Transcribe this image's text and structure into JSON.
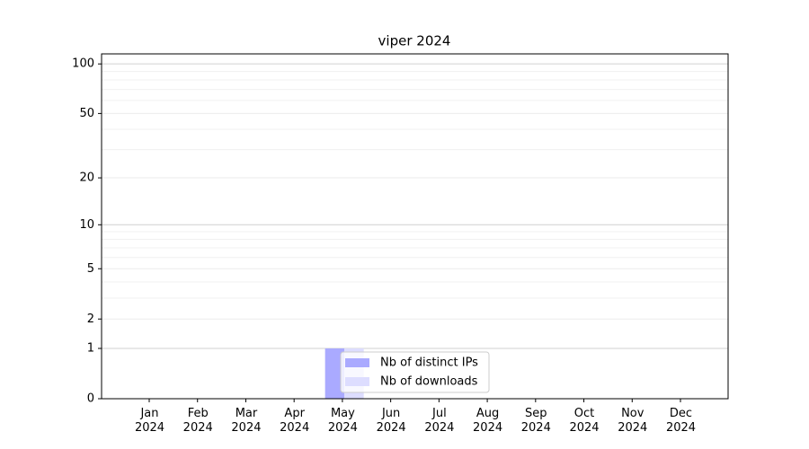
{
  "chart_data": {
    "type": "bar",
    "title": "viper 2024",
    "categories": [
      "Jan\n2024",
      "Feb\n2024",
      "Mar\n2024",
      "Apr\n2024",
      "May\n2024",
      "Jun\n2024",
      "Jul\n2024",
      "Aug\n2024",
      "Sep\n2024",
      "Oct\n2024",
      "Nov\n2024",
      "Dec\n2024"
    ],
    "series": [
      {
        "name": "Nb of distinct IPs",
        "color": "#aaaaff",
        "values": [
          0,
          0,
          0,
          0,
          1,
          0,
          0,
          0,
          0,
          0,
          0,
          0
        ]
      },
      {
        "name": "Nb of downloads",
        "color": "#ddddff",
        "values": [
          0,
          0,
          0,
          0,
          1,
          0,
          0,
          0,
          0,
          0,
          0,
          0
        ]
      }
    ],
    "ylim": [
      0,
      115
    ],
    "yticks": [
      0,
      1,
      2,
      5,
      10,
      20,
      50,
      100
    ],
    "minor_yticks": [
      3,
      4,
      6,
      7,
      8,
      9,
      30,
      40,
      60,
      70,
      80,
      90
    ],
    "scale": "log1p",
    "grid": true,
    "legend": "lower center"
  }
}
